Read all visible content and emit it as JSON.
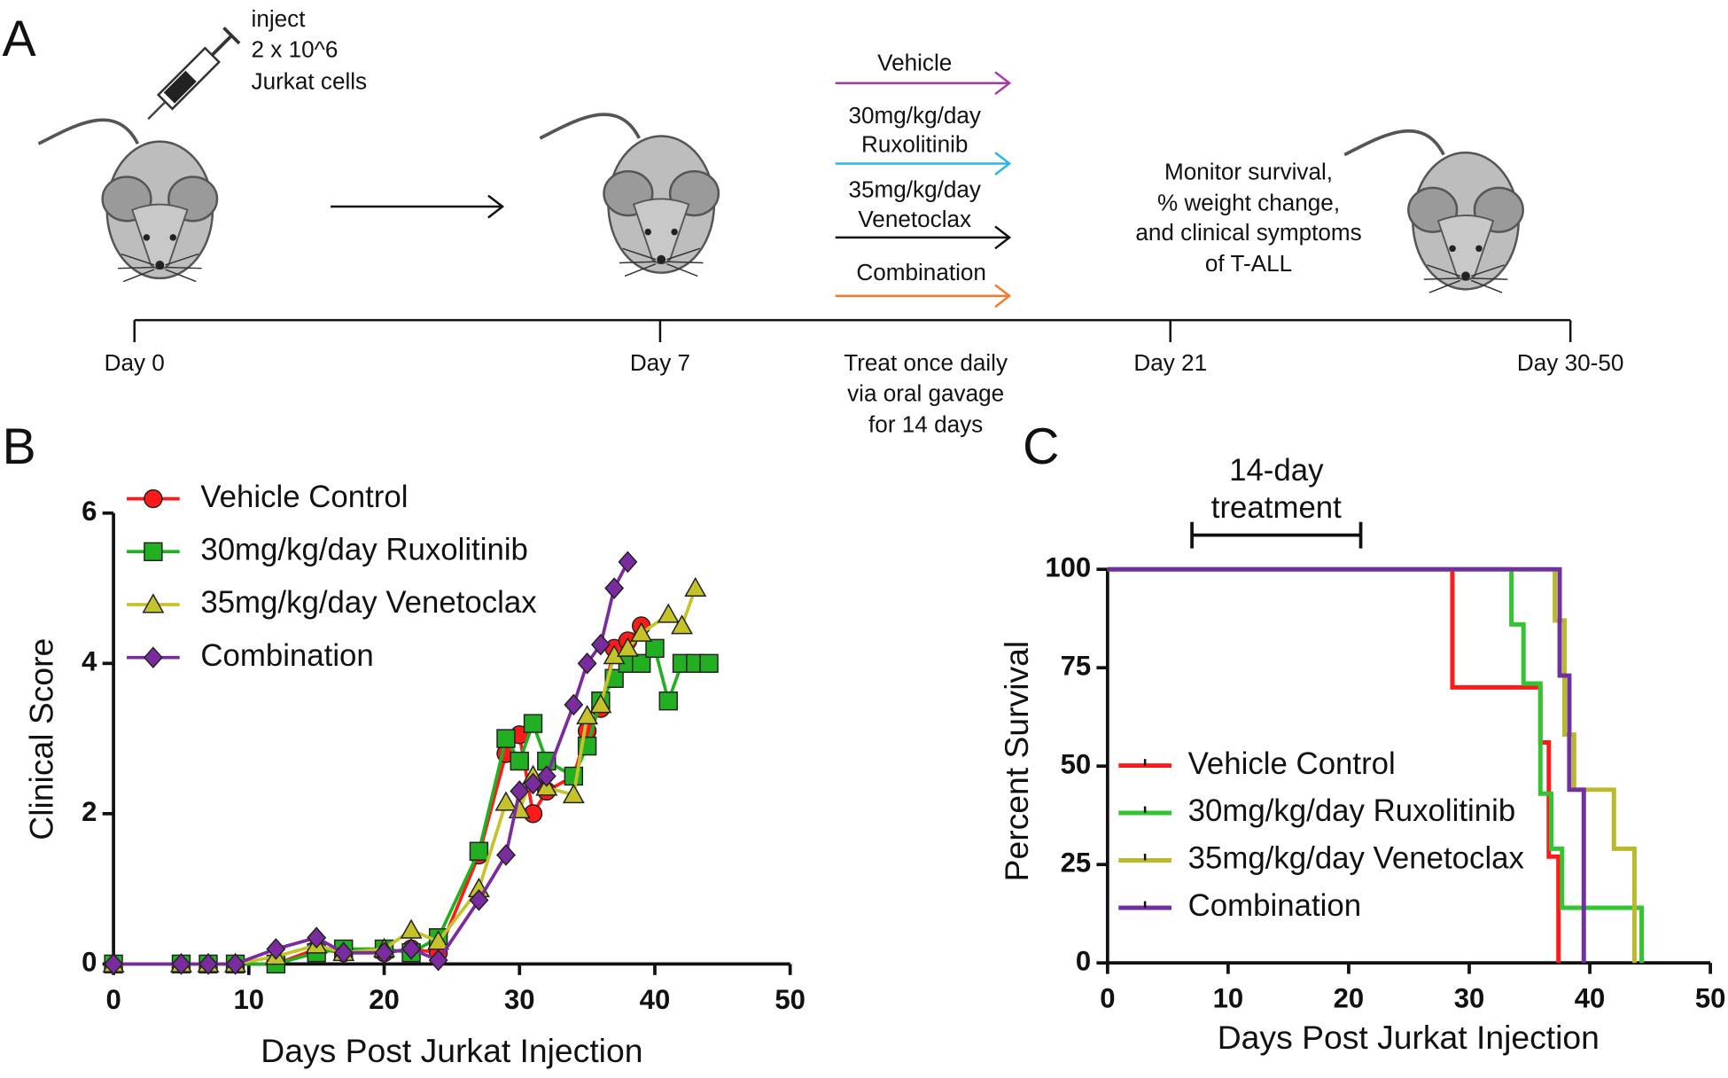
{
  "diagram": {
    "panel_label": "A",
    "inject": [
      "inject",
      "2 x 10^6",
      "Jurkat cells"
    ],
    "arms": [
      {
        "label": [
          "Vehicle"
        ],
        "color": "#a33aa8"
      },
      {
        "label": [
          "30mg/kg/day",
          "Ruxolitinib"
        ],
        "color": "#29b6e8"
      },
      {
        "label": [
          "35mg/kg/day",
          "Venetoclax"
        ],
        "color": "#111111"
      },
      {
        "label": [
          "Combination"
        ],
        "color": "#f07c2c"
      }
    ],
    "monitor": [
      "Monitor survival,",
      "% weight change,",
      "and clinical symptoms",
      "of T-ALL"
    ],
    "timeline": [
      "Day 0",
      "Day 7",
      "Day 21",
      "Day 30-50"
    ],
    "treat": [
      "Treat once daily",
      "via oral gavage",
      "for 14 days"
    ]
  },
  "chart_data": [
    {
      "type": "line",
      "panel_label": "B",
      "xlabel": "Days Post Jurkat Injection",
      "ylabel": "Clinical Score",
      "xlim": [
        0,
        50
      ],
      "ylim": [
        0,
        6
      ],
      "xticks": [
        0,
        10,
        20,
        30,
        40,
        50
      ],
      "yticks": [
        0,
        2,
        4,
        6
      ],
      "legend": "upper left",
      "series": [
        {
          "name": "Vehicle Control",
          "color": "#ff1a1a",
          "marker": "circle",
          "x": [
            0,
            5,
            7,
            9,
            12,
            15,
            17,
            20,
            22,
            24,
            27,
            29,
            30,
            31,
            32,
            34,
            35,
            36,
            37,
            38,
            39
          ],
          "values": [
            0,
            0,
            0,
            0,
            0,
            0.2,
            0.15,
            0.15,
            0.2,
            0.15,
            1.45,
            2.8,
            3.05,
            2.0,
            2.3,
            2.5,
            3.1,
            3.4,
            4.2,
            4.3,
            4.5
          ]
        },
        {
          "name": "30mg/kg/day Ruxolitinib",
          "color": "#22b022",
          "marker": "square",
          "x": [
            0,
            5,
            7,
            9,
            12,
            15,
            17,
            20,
            22,
            24,
            27,
            29,
            30,
            31,
            32,
            34,
            35,
            36,
            37,
            38,
            39,
            40,
            41,
            42,
            43,
            44
          ],
          "values": [
            0,
            0,
            0,
            0,
            0,
            0.15,
            0.2,
            0.2,
            0.15,
            0.35,
            1.5,
            3.0,
            2.7,
            3.2,
            2.7,
            2.5,
            2.9,
            3.5,
            3.8,
            4.0,
            4.0,
            4.2,
            3.5,
            4.0,
            4.0,
            4.0
          ]
        },
        {
          "name": "35mg/kg/day Venetoclax",
          "color": "#c4c42a",
          "marker": "triangle",
          "x": [
            0,
            5,
            7,
            9,
            12,
            15,
            17,
            20,
            22,
            24,
            27,
            29,
            30,
            31,
            32,
            34,
            35,
            36,
            37,
            38,
            39,
            41,
            42,
            43
          ],
          "values": [
            0,
            0,
            0,
            0,
            0.1,
            0.25,
            0.15,
            0.2,
            0.45,
            0.3,
            1.0,
            2.15,
            2.05,
            2.5,
            2.35,
            2.25,
            3.3,
            3.45,
            4.1,
            4.2,
            4.4,
            4.65,
            4.5,
            5.0
          ]
        },
        {
          "name": "Combination",
          "color": "#7a2c9e",
          "marker": "diamond",
          "x": [
            0,
            5,
            7,
            9,
            12,
            15,
            17,
            20,
            22,
            24,
            27,
            29,
            30,
            31,
            32,
            34,
            35,
            36,
            37,
            38
          ],
          "values": [
            0,
            0,
            0,
            0,
            0.2,
            0.35,
            0.15,
            0.15,
            0.2,
            0.05,
            0.85,
            1.45,
            2.3,
            2.4,
            2.5,
            3.45,
            4.0,
            4.25,
            5.0,
            5.35
          ]
        }
      ]
    },
    {
      "type": "step",
      "panel_label": "C",
      "xlabel": "Days Post Jurkat Injection",
      "ylabel": "Percent Survival",
      "xlim": [
        0,
        50
      ],
      "ylim": [
        0,
        100
      ],
      "xticks": [
        0,
        10,
        20,
        30,
        40,
        50
      ],
      "yticks": [
        0,
        25,
        50,
        75,
        100
      ],
      "legend": "lower left",
      "annotation": {
        "lines": [
          "14-day",
          "treatment"
        ],
        "x_start": 7,
        "x_end": 21
      },
      "series": [
        {
          "name": "Vehicle Control",
          "color": "#ff1a1a",
          "x": [
            0,
            28.6,
            35.9,
            36.6,
            37.4
          ],
          "values": [
            100,
            70,
            56,
            27,
            0
          ]
        },
        {
          "name": "30mg/kg/day Ruxolitinib",
          "color": "#33c433",
          "x": [
            0,
            33.5,
            34.5,
            35.9,
            36.8,
            37.7,
            44.3
          ],
          "values": [
            100,
            86,
            71,
            43,
            29,
            14,
            0
          ]
        },
        {
          "name": "35mg/kg/day Venetoclax",
          "color": "#b9b92c",
          "x": [
            0,
            37.1,
            37.9,
            38.7,
            42.0,
            43.7
          ],
          "values": [
            100,
            87,
            58,
            44,
            29,
            0
          ]
        },
        {
          "name": "Combination",
          "color": "#7030a0",
          "x": [
            0,
            37.5,
            38.3,
            39.5
          ],
          "values": [
            100,
            73,
            44,
            0
          ]
        }
      ]
    }
  ]
}
